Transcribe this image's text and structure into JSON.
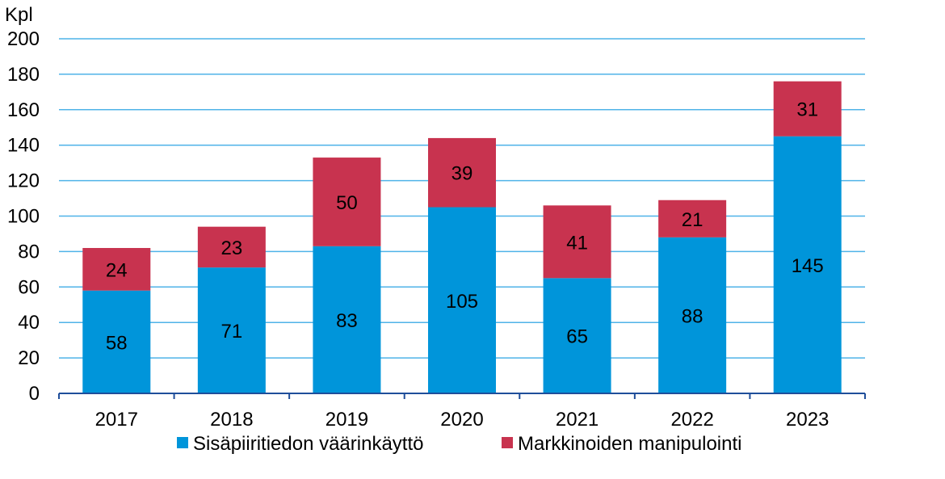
{
  "chart_data": {
    "type": "bar",
    "stacked": true,
    "title": "",
    "ylabel": "Kpl",
    "xlabel": "",
    "ylim": [
      0,
      200
    ],
    "yticks": [
      0,
      20,
      40,
      60,
      80,
      100,
      120,
      140,
      160,
      180,
      200
    ],
    "grid": true,
    "legend_placement": "bottom",
    "categories": [
      "2017",
      "2018",
      "2019",
      "2020",
      "2021",
      "2022",
      "2023"
    ],
    "series": [
      {
        "name": "Sisäpiiritiedon väärinkäyttö",
        "color": "#0095DA",
        "values": [
          58,
          71,
          83,
          105,
          65,
          88,
          145
        ]
      },
      {
        "name": "Markkinoiden manipulointi",
        "color": "#C8334F",
        "values": [
          24,
          23,
          50,
          39,
          41,
          21,
          31
        ]
      }
    ],
    "colors": {
      "grid": "#4FB3E8",
      "axis": "#1F4E9A"
    }
  }
}
